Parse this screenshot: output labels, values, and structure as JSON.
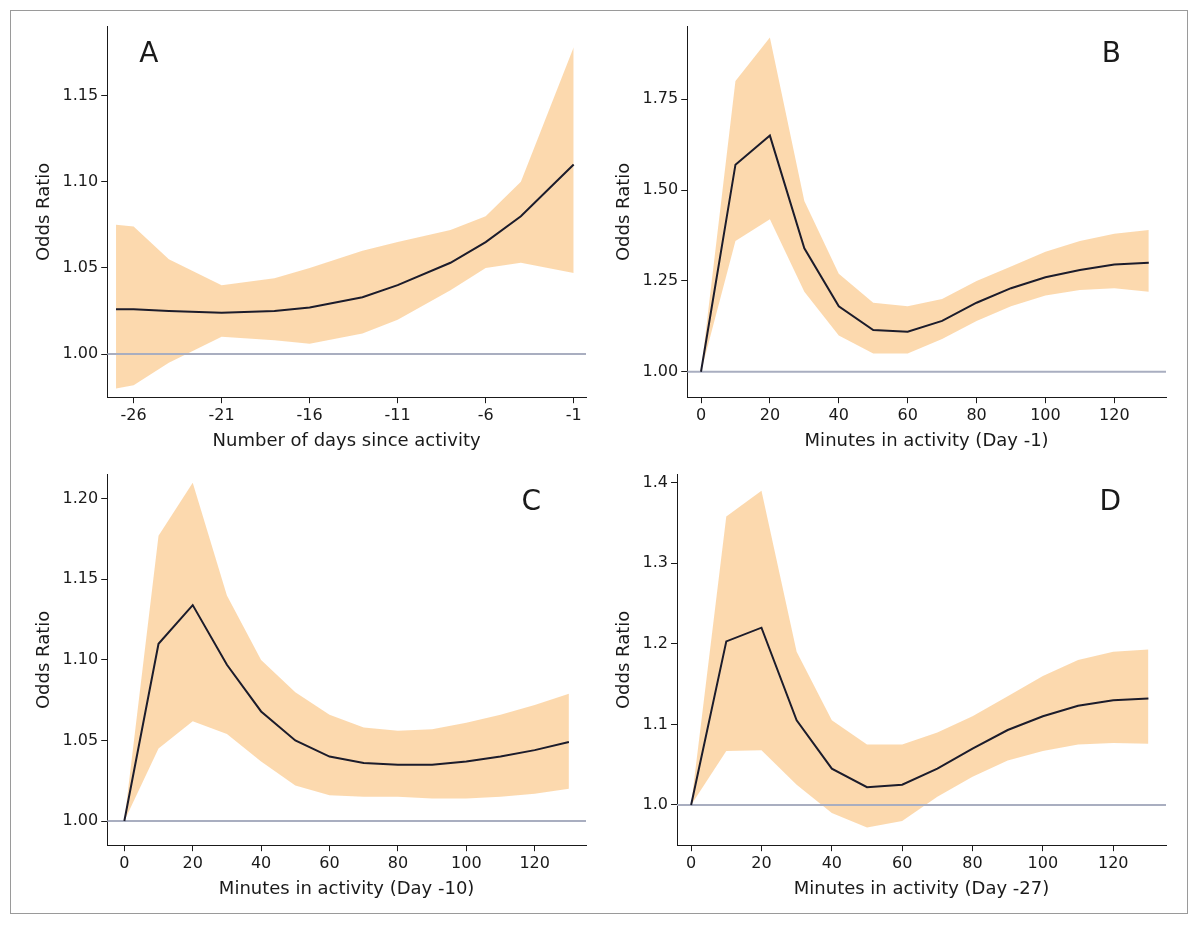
{
  "chart_data": [
    {
      "type": "line",
      "title": "A",
      "xlabel": "Number of days since activity",
      "ylabel": "Odds Ratio",
      "color": "#1c1c2b",
      "grid": false,
      "reference_line": 1,
      "x": [
        -27,
        -26,
        -24,
        -21,
        -18,
        -16,
        -13,
        -11,
        -8,
        -6,
        -4,
        -1
      ],
      "values": [
        1.026,
        1.026,
        1.025,
        1.024,
        1.025,
        1.027,
        1.033,
        1.04,
        1.053,
        1.065,
        1.08,
        1.11
      ],
      "lower": [
        0.98,
        0.982,
        0.995,
        1.01,
        1.008,
        1.006,
        1.012,
        1.02,
        1.037,
        1.05,
        1.053,
        1.047
      ],
      "upper": [
        1.075,
        1.074,
        1.055,
        1.04,
        1.044,
        1.05,
        1.06,
        1.065,
        1.072,
        1.08,
        1.1,
        1.178
      ],
      "xlim": [
        -27.5,
        -0.3
      ],
      "xticks": [
        -26,
        -21,
        -16,
        -11,
        -6,
        -1
      ],
      "ylim": [
        0.975,
        1.19
      ],
      "yticks": [
        {
          "value": 1,
          "label": "1.00"
        },
        {
          "value": 1.05,
          "label": "1.05"
        },
        {
          "value": 1.1,
          "label": "1.10"
        },
        {
          "value": 1.15,
          "label": "1.15"
        }
      ]
    },
    {
      "type": "line",
      "title": "B",
      "xlabel": "Minutes in activity (Day -1)",
      "ylabel": "Odds Ratio",
      "color": "#1c1c2b",
      "grid": false,
      "reference_line": 1,
      "x": [
        0,
        10,
        20,
        30,
        40,
        50,
        60,
        70,
        80,
        90,
        100,
        110,
        120,
        130
      ],
      "values": [
        1.0,
        1.57,
        1.65,
        1.34,
        1.18,
        1.115,
        1.11,
        1.14,
        1.19,
        1.23,
        1.26,
        1.28,
        1.295,
        1.3
      ],
      "lower": [
        1.0,
        1.36,
        1.42,
        1.22,
        1.1,
        1.05,
        1.05,
        1.09,
        1.14,
        1.18,
        1.21,
        1.225,
        1.23,
        1.22
      ],
      "upper": [
        1.0,
        1.8,
        1.92,
        1.47,
        1.27,
        1.19,
        1.18,
        1.2,
        1.25,
        1.29,
        1.33,
        1.36,
        1.38,
        1.39
      ],
      "xlim": [
        -4,
        135
      ],
      "xticks": [
        0,
        20,
        40,
        60,
        80,
        100,
        120
      ],
      "ylim": [
        0.93,
        1.95
      ],
      "yticks": [
        {
          "value": 1,
          "label": "1.00"
        },
        {
          "value": 1.25,
          "label": "1.25"
        },
        {
          "value": 1.5,
          "label": "1.50"
        },
        {
          "value": 1.75,
          "label": "1.75"
        }
      ]
    },
    {
      "type": "line",
      "title": "C",
      "xlabel": "Minutes in activity (Day -10)",
      "ylabel": "Odds Ratio",
      "color": "#1c1c2b",
      "grid": false,
      "reference_line": 1,
      "x": [
        0,
        10,
        20,
        30,
        40,
        50,
        60,
        70,
        80,
        90,
        100,
        110,
        120,
        130
      ],
      "values": [
        1.0,
        1.11,
        1.134,
        1.097,
        1.068,
        1.05,
        1.04,
        1.036,
        1.035,
        1.035,
        1.037,
        1.04,
        1.044,
        1.049
      ],
      "lower": [
        1.0,
        1.045,
        1.062,
        1.054,
        1.037,
        1.022,
        1.016,
        1.015,
        1.015,
        1.014,
        1.014,
        1.015,
        1.017,
        1.02
      ],
      "upper": [
        1.0,
        1.177,
        1.21,
        1.14,
        1.1,
        1.08,
        1.066,
        1.058,
        1.056,
        1.057,
        1.061,
        1.066,
        1.072,
        1.079
      ],
      "xlim": [
        -5,
        135
      ],
      "xticks": [
        0,
        20,
        40,
        60,
        80,
        100,
        120
      ],
      "ylim": [
        0.985,
        1.215
      ],
      "yticks": [
        {
          "value": 1,
          "label": "1.00"
        },
        {
          "value": 1.05,
          "label": "1.05"
        },
        {
          "value": 1.1,
          "label": "1.10"
        },
        {
          "value": 1.15,
          "label": "1.15"
        },
        {
          "value": 1.2,
          "label": "1.20"
        }
      ]
    },
    {
      "type": "line",
      "title": "D",
      "xlabel": "Minutes in activity (Day -27)",
      "ylabel": "Odds Ratio",
      "color": "#1c1c2b",
      "grid": false,
      "reference_line": 1,
      "x": [
        0,
        10,
        20,
        30,
        40,
        50,
        60,
        70,
        80,
        90,
        100,
        110,
        120,
        130
      ],
      "values": [
        1.0,
        1.203,
        1.22,
        1.105,
        1.045,
        1.022,
        1.025,
        1.045,
        1.07,
        1.093,
        1.11,
        1.123,
        1.13,
        1.132
      ],
      "lower": [
        1.0,
        1.067,
        1.068,
        1.025,
        0.99,
        0.972,
        0.98,
        1.01,
        1.035,
        1.055,
        1.067,
        1.075,
        1.077,
        1.076
      ],
      "upper": [
        1.0,
        1.358,
        1.39,
        1.19,
        1.105,
        1.075,
        1.075,
        1.09,
        1.11,
        1.135,
        1.16,
        1.18,
        1.19,
        1.193
      ],
      "xlim": [
        -4,
        135
      ],
      "xticks": [
        0,
        20,
        40,
        60,
        80,
        100,
        120
      ],
      "ylim": [
        0.95,
        1.41
      ],
      "yticks": [
        {
          "value": 1,
          "label": "1.0"
        },
        {
          "value": 1.1,
          "label": "1.1"
        },
        {
          "value": 1.2,
          "label": "1.2"
        },
        {
          "value": 1.3,
          "label": "1.3"
        },
        {
          "value": 1.4,
          "label": "1.4"
        }
      ]
    }
  ]
}
